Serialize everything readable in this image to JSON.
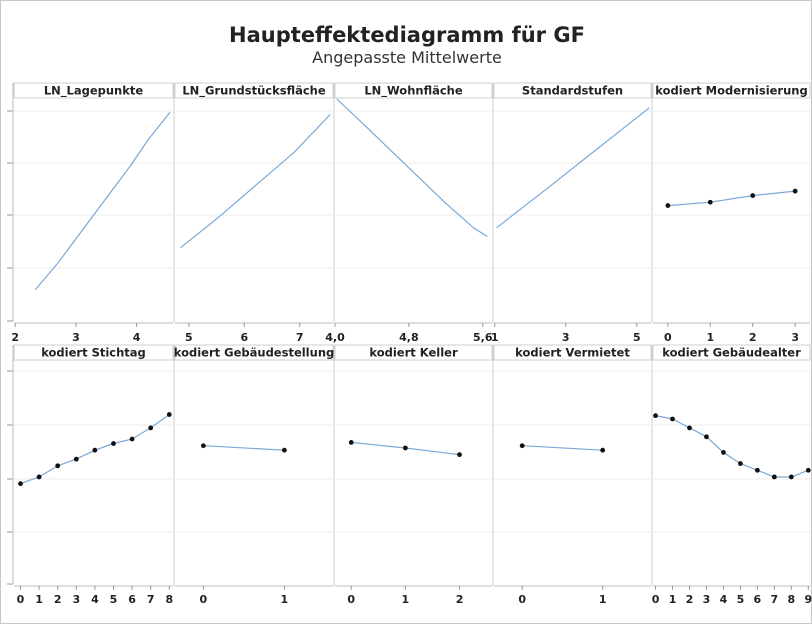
{
  "title": "Haupteffektediagramm für GF",
  "subtitle": "Angepasste Mittelwerte",
  "colors": {
    "line": "#7aa8d6",
    "point": "#111111",
    "grid": "#d9d9d9",
    "header_bg": "#ffffff"
  },
  "chart_data": [
    {
      "type": "line",
      "title": "LN_Lagepunkte",
      "row": 0,
      "col": 0,
      "continuous": true,
      "xlim": [
        1.98,
        4.6
      ],
      "xticks": [
        2,
        3,
        4
      ],
      "tick_labels": [
        "2",
        "3",
        "4"
      ],
      "ylim": [
        0,
        1
      ],
      "x": [
        2.33,
        2.7,
        3.0,
        3.3,
        3.6,
        3.9,
        4.2,
        4.55
      ],
      "y": [
        0.14,
        0.26,
        0.37,
        0.48,
        0.59,
        0.7,
        0.82,
        0.94
      ]
    },
    {
      "type": "line",
      "title": "LN_Grundstücksfläche",
      "row": 0,
      "col": 1,
      "continuous": true,
      "xlim": [
        4.75,
        7.6
      ],
      "xticks": [
        5,
        6,
        7
      ],
      "tick_labels": [
        "5",
        "6",
        "7"
      ],
      "ylim": [
        0,
        1
      ],
      "x": [
        4.85,
        5.5,
        6.2,
        6.9,
        7.55
      ],
      "y": [
        0.33,
        0.46,
        0.61,
        0.76,
        0.93
      ]
    },
    {
      "type": "line",
      "title": "LN_Wohnfläche",
      "row": 0,
      "col": 2,
      "continuous": true,
      "xlim": [
        4.0,
        5.7
      ],
      "xticks": [
        4.0,
        4.8,
        5.6
      ],
      "tick_labels": [
        "4,0",
        "4,8",
        "5,6"
      ],
      "ylim": [
        0,
        1
      ],
      "x": [
        4.02,
        4.3,
        4.6,
        4.9,
        5.2,
        5.5,
        5.65
      ],
      "y": [
        1.0,
        0.89,
        0.77,
        0.65,
        0.53,
        0.42,
        0.38
      ]
    },
    {
      "type": "line",
      "title": "Standardstufen",
      "row": 0,
      "col": 3,
      "continuous": true,
      "xlim": [
        0.98,
        5.4
      ],
      "xticks": [
        1,
        3,
        5
      ],
      "tick_labels": [
        "1",
        "3",
        "5"
      ],
      "ylim": [
        0,
        1
      ],
      "x": [
        1.05,
        2.5,
        4.0,
        5.35
      ],
      "y": [
        0.42,
        0.6,
        0.79,
        0.96
      ]
    },
    {
      "type": "line",
      "title": "kodiert Modernisierung",
      "row": 0,
      "col": 4,
      "continuous": false,
      "xlim": [
        -0.35,
        3.35
      ],
      "xticks": [
        0,
        1,
        2,
        3
      ],
      "tick_labels": [
        "0",
        "1",
        "2",
        "3"
      ],
      "ylim": [
        0,
        1
      ],
      "x": [
        0,
        1,
        2,
        3
      ],
      "y": [
        0.52,
        0.535,
        0.565,
        0.585
      ]
    },
    {
      "type": "line",
      "title": "kodiert Stichtag",
      "row": 1,
      "col": 0,
      "continuous": false,
      "xlim": [
        -0.35,
        8.2
      ],
      "xticks": [
        0,
        1,
        2,
        3,
        4,
        5,
        6,
        7,
        8
      ],
      "tick_labels": [
        "0",
        "1",
        "2",
        "3",
        "4",
        "5",
        "6",
        "7",
        "8"
      ],
      "ylim": [
        0,
        1
      ],
      "x": [
        0,
        1,
        2,
        3,
        4,
        5,
        6,
        7,
        8
      ],
      "y": [
        0.45,
        0.48,
        0.53,
        0.56,
        0.6,
        0.63,
        0.65,
        0.7,
        0.76
      ]
    },
    {
      "type": "line",
      "title": "kodiert Gebäudestellung",
      "row": 1,
      "col": 1,
      "continuous": false,
      "xlim": [
        -0.35,
        1.6
      ],
      "xticks": [
        0,
        1
      ],
      "tick_labels": [
        "0",
        "1"
      ],
      "ylim": [
        0,
        1
      ],
      "x": [
        0,
        1
      ],
      "y": [
        0.62,
        0.6
      ]
    },
    {
      "type": "line",
      "title": "kodiert Keller",
      "row": 1,
      "col": 2,
      "continuous": false,
      "xlim": [
        -0.3,
        2.6
      ],
      "xticks": [
        0,
        1,
        2
      ],
      "tick_labels": [
        "0",
        "1",
        "2"
      ],
      "ylim": [
        0,
        1
      ],
      "x": [
        0,
        1,
        2
      ],
      "y": [
        0.635,
        0.61,
        0.58
      ]
    },
    {
      "type": "line",
      "title": "kodiert Vermietet",
      "row": 1,
      "col": 3,
      "continuous": false,
      "xlim": [
        -0.35,
        1.6
      ],
      "xticks": [
        0,
        1
      ],
      "tick_labels": [
        "0",
        "1"
      ],
      "ylim": [
        0,
        1
      ],
      "x": [
        0,
        1
      ],
      "y": [
        0.62,
        0.6
      ]
    },
    {
      "type": "line",
      "title": "kodiert Gebäudealter",
      "row": 1,
      "col": 4,
      "continuous": false,
      "xlim": [
        -0.15,
        9.1
      ],
      "xticks": [
        0,
        1,
        2,
        3,
        4,
        5,
        6,
        7,
        8,
        9
      ],
      "tick_labels": [
        "0",
        "1",
        "2",
        "3",
        "4",
        "5",
        "6",
        "7",
        "8",
        "9"
      ],
      "ylim": [
        0,
        1
      ],
      "x": [
        0,
        1,
        2,
        3,
        4,
        5,
        6,
        7,
        8,
        9
      ],
      "y": [
        0.755,
        0.74,
        0.7,
        0.66,
        0.59,
        0.54,
        0.51,
        0.48,
        0.48,
        0.51
      ]
    }
  ]
}
